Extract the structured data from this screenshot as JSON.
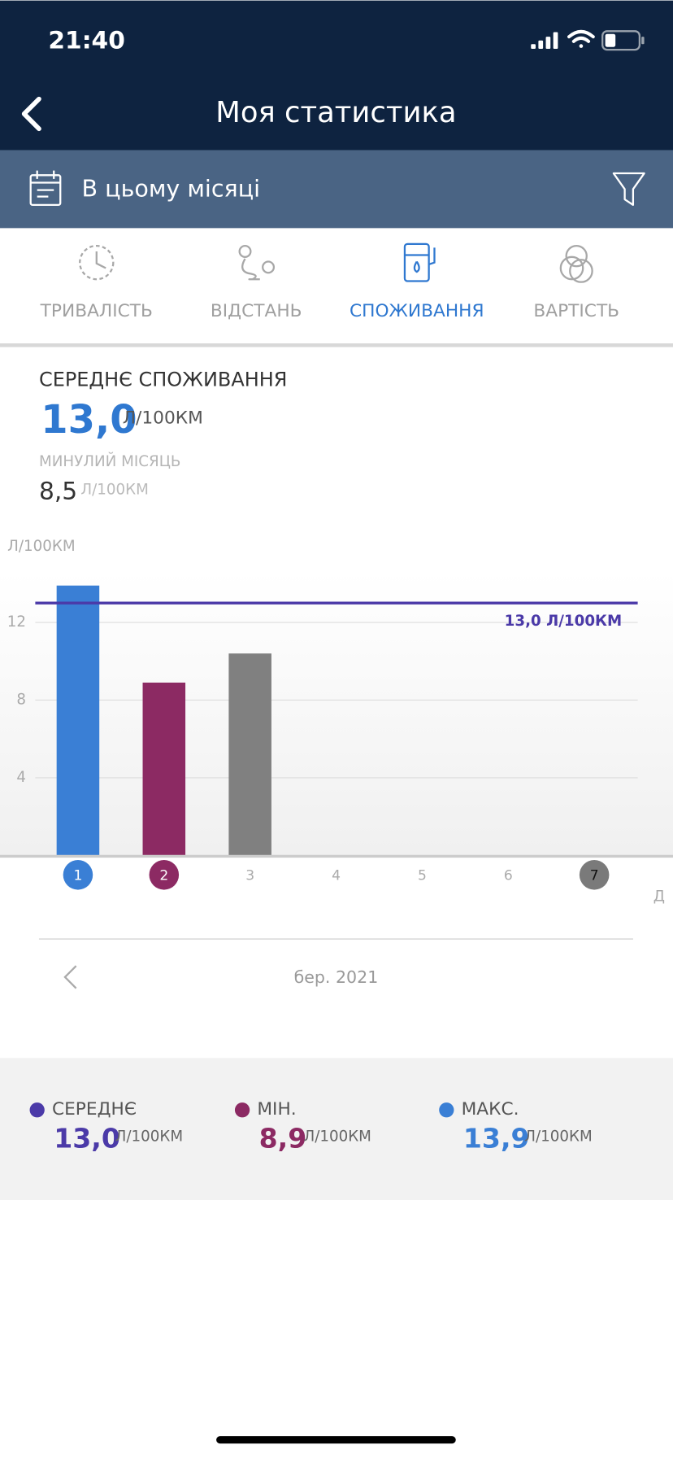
{
  "status_bar": {
    "time": "21:40"
  },
  "header": {
    "title": "Моя статистика"
  },
  "filter": {
    "label": "В цьому місяці"
  },
  "tabs": {
    "labels": [
      "ТРИВАЛІСТЬ",
      "ВІДСТАНЬ",
      "СПОЖИВАННЯ",
      "ВАРТІСТЬ"
    ],
    "active": 2
  },
  "summary": {
    "title": "СЕРЕДНЄ СПОЖИВАННЯ",
    "value": "13,0",
    "unit": "Л/100КМ",
    "previous_label": "МИНУЛИЙ МІСЯЦЬ",
    "previous_value": "8,5",
    "previous_unit": "Л/100КМ"
  },
  "chart_data": {
    "type": "bar",
    "y_label": "Л/100КМ",
    "x_label": "Д",
    "categories": [
      "1",
      "2",
      "3",
      "4",
      "5",
      "6",
      "7"
    ],
    "values": [
      13.9,
      8.9,
      10.4,
      null,
      null,
      null,
      null
    ],
    "colors": [
      "#3a7fd5",
      "#8c2a63",
      "#808080",
      null,
      null,
      null,
      null
    ],
    "category_badge_colors": [
      "#3a7fd5",
      "#8c2a63",
      null,
      null,
      null,
      null,
      "#7a7a7a"
    ],
    "ylim": [
      0,
      14.6
    ],
    "yticks": [
      4,
      8,
      12
    ],
    "grid": true,
    "reference": {
      "value": 13.0,
      "label": "13,0 Л/100КМ",
      "color": "#4b3aa8"
    }
  },
  "period": "бер. 2021",
  "stats": [
    {
      "label": "СЕРЕДНЄ",
      "value": "13,0",
      "unit": "Л/100КМ",
      "color": "#4b3aa8"
    },
    {
      "label": "МІН.",
      "value": "8,9",
      "unit": "Л/100КМ",
      "color": "#8c2a63"
    },
    {
      "label": "МАКС.",
      "value": "13,9",
      "unit": "Л/100КМ",
      "color": "#3a7fd5"
    }
  ]
}
